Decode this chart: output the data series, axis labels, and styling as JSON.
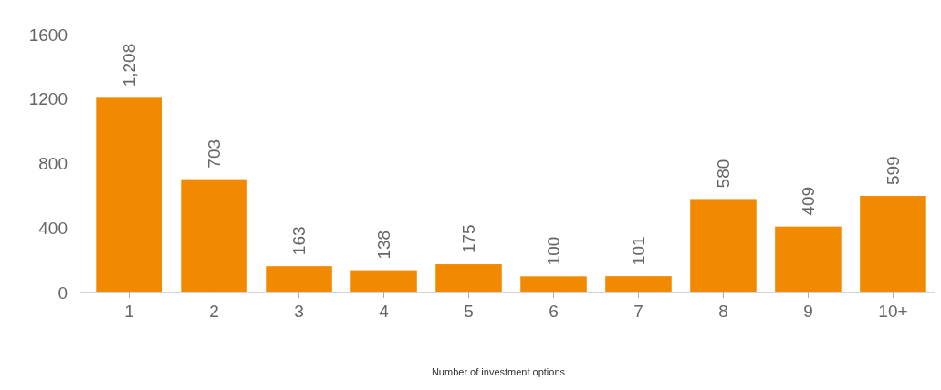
{
  "chart_data": {
    "type": "bar",
    "xlabel": "Number of investment options",
    "categories": [
      "1",
      "2",
      "3",
      "4",
      "5",
      "6",
      "7",
      "8",
      "9",
      "10+"
    ],
    "values": [
      1208,
      703,
      163,
      138,
      175,
      100,
      101,
      580,
      409,
      599
    ],
    "value_labels": [
      "1,208",
      "703",
      "163",
      "138",
      "175",
      "100",
      "101",
      "580",
      "409",
      "599"
    ],
    "color": "#f18a00",
    "ylim": [
      0,
      1600
    ],
    "yticks": [
      0,
      400,
      800,
      1200,
      1600
    ],
    "grid": false
  }
}
